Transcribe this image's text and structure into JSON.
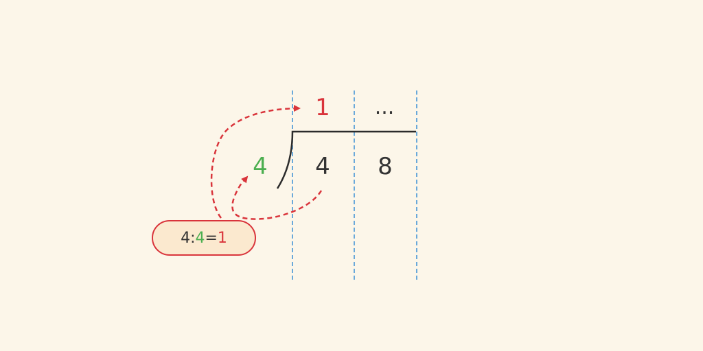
{
  "colors": {
    "background": "#fcf6e9",
    "red": "#d9343b",
    "green": "#4caf50",
    "text": "#333333",
    "guide": "#3a8fd6",
    "note_fill": "#fbe9cf"
  },
  "quotient": {
    "digit": "1",
    "ellipsis": "..."
  },
  "divisor": "4",
  "dividend": [
    "4",
    "8"
  ],
  "note": {
    "dividend": "4",
    "op_divide": ":",
    "divisor": "4",
    "op_equals": "=",
    "result": "1"
  },
  "icons": {
    "arrow_to_quotient": "dashed-arrow",
    "arrow_to_divisor": "dashed-arrow"
  }
}
